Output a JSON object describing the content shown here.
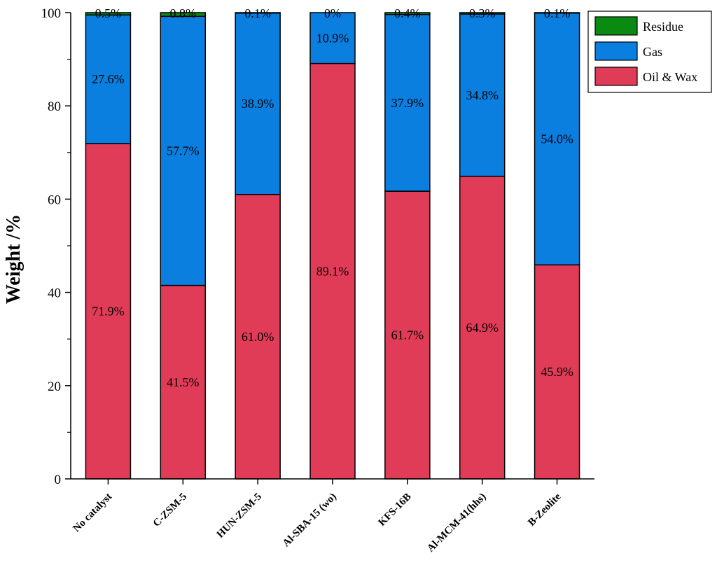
{
  "chart_data": {
    "type": "bar",
    "stacked": true,
    "title": "",
    "xlabel": "",
    "ylabel": "Weight /%",
    "ylim": [
      0,
      100
    ],
    "yticks": [
      "0",
      "20",
      "40",
      "60",
      "80",
      "100"
    ],
    "categories": [
      "No catalyst",
      "C-ZSM-5",
      "HUN-ZSM-5",
      "Al-SBA-15 (wo)",
      "KFS-16B",
      "Al-MCM-41(hhs)",
      "B-Zeolite"
    ],
    "series": [
      {
        "name": "Oil & Wax",
        "color": "#E03B57",
        "values": [
          71.9,
          41.5,
          61.0,
          89.1,
          61.7,
          64.9,
          45.9
        ],
        "labels": [
          "71.9%",
          "41.5%",
          "61.0%",
          "89.1%",
          "61.7%",
          "64.9%",
          "45.9%"
        ]
      },
      {
        "name": "Gas",
        "color": "#0A7FE0",
        "values": [
          27.6,
          57.7,
          38.9,
          10.9,
          37.9,
          34.8,
          54.0
        ],
        "labels": [
          "27.6%",
          "57.7%",
          "38.9%",
          "10.9%",
          "37.9%",
          "34.8%",
          "54.0%"
        ]
      },
      {
        "name": "Residue",
        "color": "#0B8A12",
        "values": [
          0.5,
          0.8,
          0.1,
          0,
          0.4,
          0.3,
          0.1
        ],
        "labels": [
          "0.5%",
          "0.8%",
          "0.1%",
          "0%",
          "0.4%",
          "0.3%",
          "0.1%"
        ]
      }
    ],
    "legend": {
      "placement": "top-right",
      "order": [
        "Residue",
        "Gas",
        "Oil & Wax"
      ]
    },
    "grid": false
  }
}
